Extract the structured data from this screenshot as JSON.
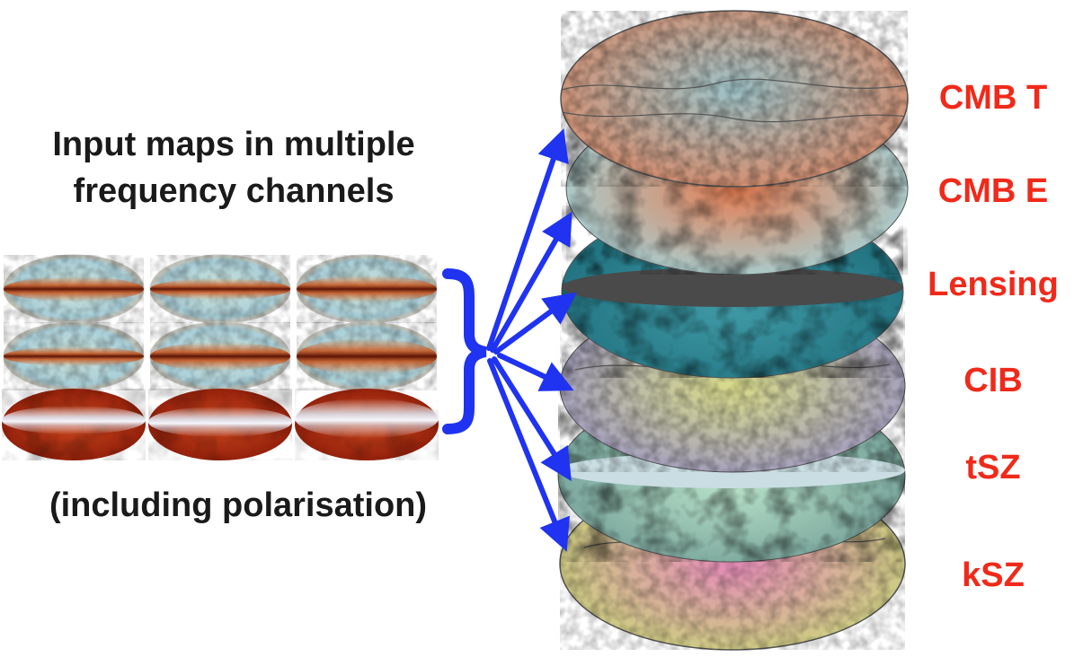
{
  "title": {
    "line1": "Input maps in multiple",
    "line2": "frequency channels"
  },
  "subtitle": "(including polarisation)",
  "colors": {
    "label": "#f02a1a",
    "arrow": "#1f33f0",
    "brace": "#1f33f0",
    "text": "#1a1a1a"
  },
  "input_maps": {
    "rows": 3,
    "cols": 3,
    "row_styles": [
      "temperature",
      "temperature",
      "dust"
    ]
  },
  "output_maps": [
    {
      "label": "CMB T",
      "style": "cmb-t"
    },
    {
      "label": "CMB E",
      "style": "cmb-e"
    },
    {
      "label": "Lensing",
      "style": "lensing"
    },
    {
      "label": "CIB",
      "style": "cib"
    },
    {
      "label": "tSZ",
      "style": "tsz"
    },
    {
      "label": "kSZ",
      "style": "ksz"
    }
  ]
}
